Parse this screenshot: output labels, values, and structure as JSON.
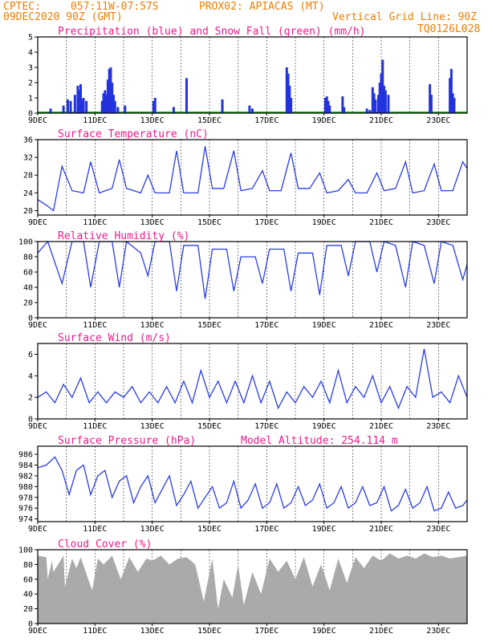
{
  "header": {
    "line1_left": "CPTEC:",
    "line1_coords": "057:11W-07:57S",
    "line1_station": "PROX02: APIACAS (MT)",
    "line2_date": "09DEC2020 90Z (GMT)",
    "line2_grid": "Vertical Grid Line: 90Z",
    "line3_code": "TQ0126L028"
  },
  "colors": {
    "precip": "#2233dd",
    "snow": "#22aa22",
    "line": "#2a3ee0",
    "cloud": "#aaaaaa",
    "header": "#f07d00",
    "panel_title": "#ee1a8c"
  },
  "x_axis": {
    "range_days": [
      0,
      15
    ],
    "ticks": [
      {
        "day": 0,
        "label": "9DEC"
      },
      {
        "day": 2,
        "label": "11DEC"
      },
      {
        "day": 4,
        "label": "13DEC"
      },
      {
        "day": 6,
        "label": "15DEC"
      },
      {
        "day": 8,
        "label": "17DEC"
      },
      {
        "day": 10,
        "label": "19DEC"
      },
      {
        "day": 12,
        "label": "21DEC"
      },
      {
        "day": 14,
        "label": "23DEC"
      }
    ]
  },
  "chart_data": [
    {
      "type": "bar",
      "title": "Precipitation (blue) and Snow Fall (green) (mm/h)",
      "ylim": [
        0,
        5
      ],
      "yticks": [
        0,
        1,
        2,
        3,
        4,
        5
      ],
      "x_unit": "days since 09DEC2020 90Z",
      "precip_points": [
        [
          0.45,
          0.3
        ],
        [
          0.9,
          0.5
        ],
        [
          1.05,
          0.9
        ],
        [
          1.15,
          0.8
        ],
        [
          1.3,
          1.2
        ],
        [
          1.4,
          1.8
        ],
        [
          1.45,
          1.5
        ],
        [
          1.5,
          1.9
        ],
        [
          1.55,
          0.9
        ],
        [
          1.6,
          1.0
        ],
        [
          1.7,
          0.8
        ],
        [
          2.25,
          0.8
        ],
        [
          2.3,
          1.3
        ],
        [
          2.35,
          1.5
        ],
        [
          2.4,
          1.2
        ],
        [
          2.45,
          2.2
        ],
        [
          2.5,
          2.9
        ],
        [
          2.55,
          3.0
        ],
        [
          2.6,
          2.0
        ],
        [
          2.65,
          1.2
        ],
        [
          2.7,
          0.8
        ],
        [
          2.8,
          0.4
        ],
        [
          3.05,
          0.5
        ],
        [
          4.05,
          0.8
        ],
        [
          4.1,
          1.0
        ],
        [
          4.75,
          0.4
        ],
        [
          5.2,
          2.3
        ],
        [
          6.45,
          0.9
        ],
        [
          7.4,
          0.5
        ],
        [
          7.5,
          0.3
        ],
        [
          8.7,
          3.0
        ],
        [
          8.75,
          2.6
        ],
        [
          8.8,
          1.8
        ],
        [
          8.85,
          1.0
        ],
        [
          10.05,
          1.0
        ],
        [
          10.1,
          1.1
        ],
        [
          10.15,
          0.8
        ],
        [
          10.2,
          0.5
        ],
        [
          10.65,
          1.1
        ],
        [
          10.7,
          0.4
        ],
        [
          11.5,
          0.3
        ],
        [
          11.6,
          0.2
        ],
        [
          11.7,
          1.7
        ],
        [
          11.75,
          1.3
        ],
        [
          11.8,
          0.9
        ],
        [
          11.9,
          1.2
        ],
        [
          11.95,
          2.0
        ],
        [
          12.0,
          2.6
        ],
        [
          12.05,
          3.5
        ],
        [
          12.1,
          1.8
        ],
        [
          12.15,
          1.5
        ],
        [
          12.25,
          1.2
        ],
        [
          13.7,
          1.9
        ],
        [
          13.75,
          1.2
        ],
        [
          14.4,
          2.3
        ],
        [
          14.45,
          2.9
        ],
        [
          14.5,
          1.3
        ],
        [
          14.55,
          1.0
        ]
      ],
      "snow_level": 0
    },
    {
      "type": "line",
      "title": "Surface Temperature (nC)",
      "ylim": [
        19,
        36
      ],
      "yticks": [
        20,
        24,
        28,
        32,
        36
      ],
      "x": [
        0,
        0.35,
        0.55,
        0.85,
        1.2,
        1.6,
        1.85,
        2.15,
        2.6,
        2.85,
        3.1,
        3.6,
        3.85,
        4.1,
        4.6,
        4.85,
        5.1,
        5.6,
        5.85,
        6.1,
        6.5,
        6.85,
        7.1,
        7.5,
        7.85,
        8.1,
        8.5,
        8.85,
        9.1,
        9.5,
        9.85,
        10.1,
        10.5,
        10.85,
        11.1,
        11.5,
        11.85,
        12.1,
        12.5,
        12.85,
        13.1,
        13.5,
        13.85,
        14.1,
        14.5,
        14.85,
        15
      ],
      "values": [
        22.5,
        21.0,
        20.0,
        30.0,
        24.5,
        24.0,
        31.0,
        24.0,
        25.0,
        31.5,
        25.0,
        24.0,
        28.0,
        24.0,
        24.0,
        33.5,
        24.0,
        24.0,
        34.5,
        25.0,
        25.0,
        33.5,
        24.5,
        25.0,
        29.0,
        24.5,
        24.5,
        33.0,
        25.0,
        25.0,
        28.5,
        24.0,
        24.5,
        27.0,
        24.0,
        24.0,
        28.5,
        24.5,
        25.0,
        31.0,
        24.0,
        24.5,
        30.5,
        24.5,
        24.5,
        31.0,
        29.5
      ]
    },
    {
      "type": "line",
      "title": "Relative Humidity (%)",
      "ylim": [
        0,
        100
      ],
      "yticks": [
        0,
        20,
        40,
        60,
        80,
        100
      ],
      "x": [
        0,
        0.35,
        0.85,
        1.2,
        1.6,
        1.85,
        2.15,
        2.6,
        2.85,
        3.1,
        3.6,
        3.85,
        4.1,
        4.6,
        4.85,
        5.1,
        5.6,
        5.85,
        6.1,
        6.6,
        6.85,
        7.1,
        7.6,
        7.85,
        8.1,
        8.6,
        8.85,
        9.1,
        9.6,
        9.85,
        10.1,
        10.6,
        10.85,
        11.1,
        11.6,
        11.85,
        12.1,
        12.5,
        12.85,
        13.1,
        13.5,
        13.85,
        14.1,
        14.5,
        14.85,
        15
      ],
      "values": [
        85,
        100,
        45,
        100,
        100,
        40,
        100,
        100,
        40,
        100,
        85,
        55,
        100,
        100,
        35,
        95,
        95,
        25,
        90,
        90,
        35,
        80,
        80,
        45,
        90,
        90,
        35,
        85,
        85,
        30,
        95,
        95,
        55,
        100,
        100,
        60,
        100,
        95,
        40,
        100,
        95,
        45,
        100,
        95,
        50,
        70
      ]
    },
    {
      "type": "line",
      "title": "Surface Wind (m/s)",
      "ylim": [
        0,
        7
      ],
      "yticks": [
        0,
        2,
        4,
        6
      ],
      "x": [
        0,
        0.3,
        0.6,
        0.9,
        1.2,
        1.5,
        1.8,
        2.1,
        2.4,
        2.7,
        3.0,
        3.3,
        3.6,
        3.9,
        4.2,
        4.5,
        4.8,
        5.1,
        5.4,
        5.7,
        6.0,
        6.3,
        6.6,
        6.9,
        7.2,
        7.5,
        7.8,
        8.1,
        8.4,
        8.7,
        9.0,
        9.3,
        9.6,
        9.9,
        10.2,
        10.5,
        10.8,
        11.1,
        11.4,
        11.7,
        12.0,
        12.3,
        12.6,
        12.9,
        13.2,
        13.5,
        13.8,
        14.1,
        14.4,
        14.7,
        15
      ],
      "values": [
        2,
        2.5,
        1.5,
        3.2,
        2,
        3.8,
        1.5,
        2.5,
        1.5,
        2.5,
        2,
        3,
        1.5,
        2.5,
        1.5,
        3,
        1.5,
        3.5,
        1.5,
        4.5,
        2,
        3.5,
        1.5,
        3.5,
        1.5,
        4,
        1.5,
        3.5,
        1,
        2.5,
        1.5,
        3,
        2,
        3.5,
        1.5,
        4.5,
        1.5,
        3,
        2,
        4,
        1.5,
        3,
        1,
        3,
        2,
        6.5,
        2,
        2.5,
        1.5,
        4,
        2
      ]
    },
    {
      "type": "line",
      "title": "Surface Pressure (hPa)",
      "annotation": "Model Altitude: 254.114 m",
      "ylim": [
        973.5,
        987.5
      ],
      "yticks": [
        974,
        976,
        978,
        980,
        982,
        984,
        986
      ],
      "x": [
        0,
        0.3,
        0.6,
        0.85,
        1.1,
        1.35,
        1.6,
        1.85,
        2.1,
        2.35,
        2.6,
        2.85,
        3.1,
        3.35,
        3.6,
        3.85,
        4.1,
        4.35,
        4.6,
        4.85,
        5.1,
        5.35,
        5.6,
        5.85,
        6.1,
        6.35,
        6.6,
        6.85,
        7.1,
        7.35,
        7.6,
        7.85,
        8.1,
        8.35,
        8.6,
        8.85,
        9.1,
        9.35,
        9.6,
        9.85,
        10.1,
        10.35,
        10.6,
        10.85,
        11.1,
        11.35,
        11.6,
        11.85,
        12.1,
        12.35,
        12.6,
        12.85,
        13.1,
        13.35,
        13.6,
        13.85,
        14.1,
        14.35,
        14.6,
        14.85,
        15
      ],
      "values": [
        983.5,
        984,
        985.5,
        983,
        978.5,
        983,
        984,
        978.5,
        982,
        983,
        978,
        981,
        982,
        977,
        980,
        982,
        977,
        979.5,
        982,
        976.5,
        978.5,
        981,
        976,
        978,
        980,
        976,
        977,
        981,
        976,
        977.5,
        980.5,
        976,
        977,
        980.5,
        976,
        977,
        980,
        976.5,
        977.5,
        980.5,
        976,
        977,
        980,
        976,
        977,
        980,
        976.5,
        977,
        980,
        975.5,
        976.5,
        979.5,
        976,
        977,
        980,
        975.5,
        976,
        979,
        976,
        976.5,
        977.5
      ]
    },
    {
      "type": "area",
      "title": "Cloud Cover (%)",
      "ylim": [
        0,
        100
      ],
      "yticks": [
        0,
        20,
        40,
        60,
        80,
        100
      ],
      "x": [
        0,
        0.3,
        0.35,
        0.5,
        0.55,
        0.9,
        0.95,
        1.2,
        1.35,
        1.5,
        1.9,
        2.1,
        2.3,
        2.6,
        2.9,
        3.2,
        3.5,
        3.8,
        4.0,
        4.3,
        4.6,
        4.9,
        5.2,
        5.5,
        5.8,
        6.1,
        6.3,
        6.5,
        6.8,
        7.0,
        7.2,
        7.5,
        7.8,
        8.1,
        8.4,
        8.7,
        9.0,
        9.3,
        9.6,
        9.9,
        10.2,
        10.5,
        10.8,
        11.1,
        11.4,
        11.7,
        12.0,
        12.3,
        12.6,
        12.9,
        13.2,
        13.5,
        13.8,
        14.1,
        14.4,
        14.7,
        15
      ],
      "values": [
        92,
        90,
        60,
        85,
        70,
        92,
        50,
        88,
        75,
        90,
        45,
        88,
        80,
        92,
        60,
        90,
        70,
        88,
        85,
        92,
        80,
        88,
        90,
        80,
        30,
        88,
        20,
        60,
        35,
        80,
        25,
        70,
        40,
        88,
        70,
        85,
        60,
        90,
        50,
        80,
        45,
        88,
        55,
        90,
        75,
        92,
        85,
        95,
        88,
        92,
        88,
        95,
        90,
        92,
        88,
        90,
        92
      ]
    }
  ]
}
